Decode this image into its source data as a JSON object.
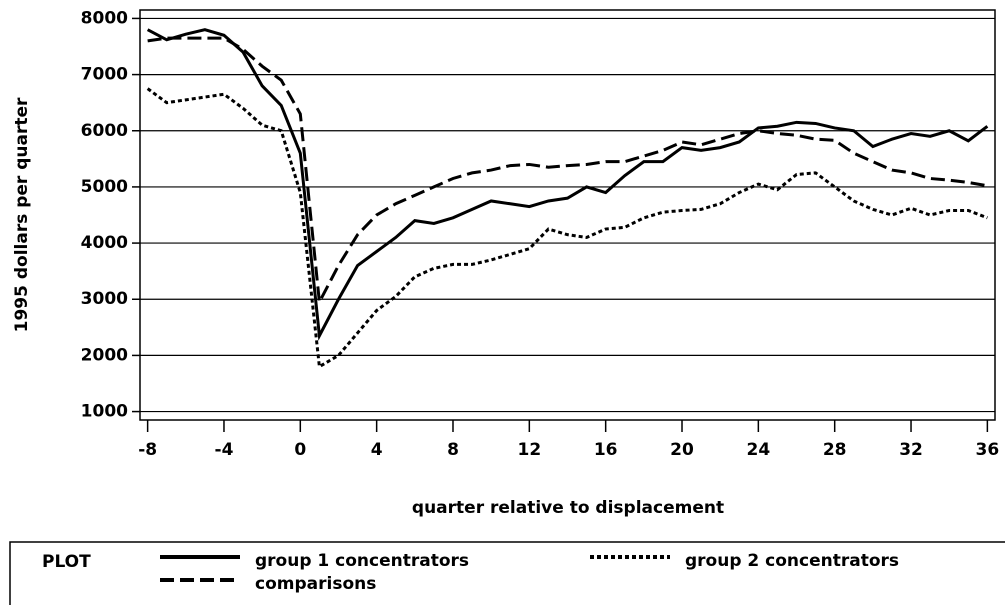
{
  "chart_data": {
    "type": "line",
    "x_label": "quarter relative to displacement",
    "y_label": "1995 dollars per quarter",
    "legend_title": "PLOT",
    "x": [
      -8,
      -7,
      -6,
      -5,
      -4,
      -3,
      -2,
      -1,
      0,
      1,
      2,
      3,
      4,
      5,
      6,
      7,
      8,
      9,
      10,
      11,
      12,
      13,
      14,
      15,
      16,
      17,
      18,
      19,
      20,
      21,
      22,
      23,
      24,
      25,
      26,
      27,
      28,
      29,
      30,
      31,
      32,
      33,
      34,
      35,
      36
    ],
    "series": [
      {
        "name": "group 1 concentrators",
        "color": "#000000",
        "dash": "solid",
        "values": [
          7800,
          7620,
          7720,
          7800,
          7700,
          7400,
          6800,
          6450,
          5600,
          2350,
          3000,
          3600,
          3850,
          4100,
          4400,
          4350,
          4450,
          4600,
          4750,
          4700,
          4650,
          4750,
          4800,
          5000,
          4900,
          5200,
          5450,
          5450,
          5700,
          5650,
          5700,
          5800,
          6050,
          6080,
          6150,
          6130,
          6050,
          6000,
          5720,
          5850,
          5950,
          5900,
          6000,
          5820,
          6080
        ]
      },
      {
        "name": "group 2 concentrators",
        "color": "#000000",
        "dash": "dotted",
        "values": [
          6750,
          6500,
          6550,
          6600,
          6650,
          6400,
          6100,
          6000,
          4900,
          1800,
          2000,
          2400,
          2800,
          3050,
          3400,
          3550,
          3620,
          3620,
          3700,
          3800,
          3900,
          4250,
          4150,
          4100,
          4250,
          4280,
          4450,
          4550,
          4580,
          4600,
          4700,
          4900,
          5050,
          4950,
          5220,
          5250,
          5000,
          4750,
          4600,
          4500,
          4620,
          4500,
          4580,
          4580,
          4450
        ]
      },
      {
        "name": "comparisons",
        "color": "#000000",
        "dash": "dashed",
        "values": [
          7600,
          7650,
          7650,
          7650,
          7650,
          7450,
          7150,
          6900,
          6300,
          2950,
          3600,
          4150,
          4500,
          4700,
          4850,
          5000,
          5150,
          5250,
          5300,
          5380,
          5400,
          5350,
          5380,
          5400,
          5450,
          5450,
          5550,
          5650,
          5800,
          5750,
          5850,
          5950,
          6000,
          5950,
          5920,
          5850,
          5830,
          5600,
          5450,
          5300,
          5250,
          5150,
          5120,
          5080,
          5020
        ]
      }
    ],
    "xlim": [
      -8.4,
      36.4
    ],
    "xticks": [
      -8,
      -4,
      0,
      4,
      8,
      12,
      16,
      20,
      24,
      28,
      32,
      36
    ],
    "ylim": [
      850,
      8150
    ],
    "yticks": [
      1000,
      2000,
      3000,
      4000,
      5000,
      6000,
      7000,
      8000
    ],
    "grid": true
  }
}
